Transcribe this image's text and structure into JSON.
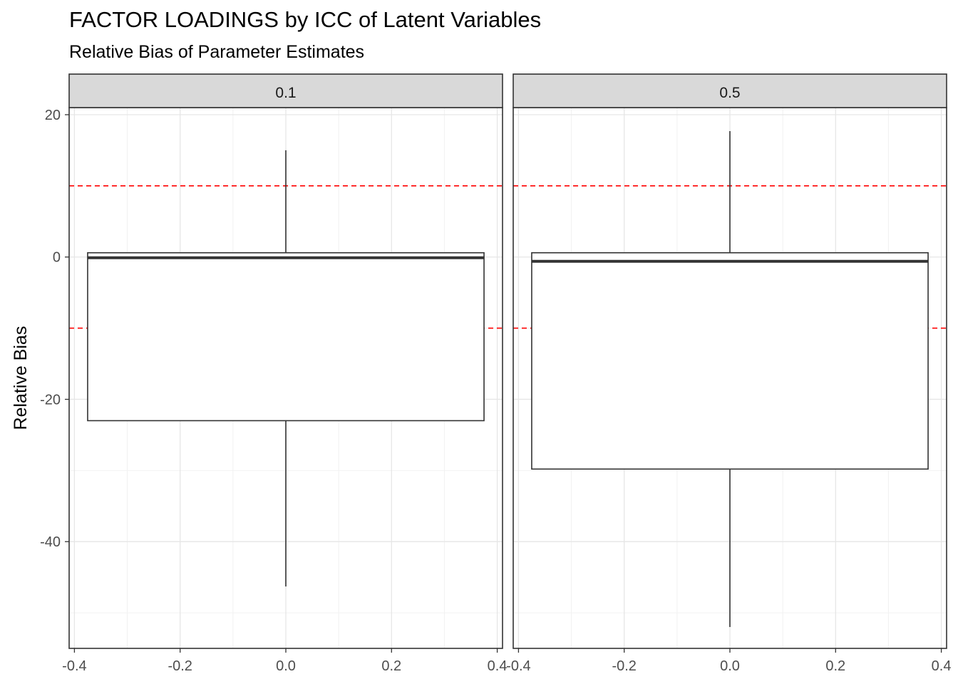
{
  "chart_data": {
    "type": "boxplot",
    "title": "FACTOR LOADINGS by ICC of Latent Variables",
    "subtitle": "Relative Bias of Parameter Estimates",
    "xlabel": "",
    "ylabel": "Relative Bias",
    "xlim": [
      -0.41,
      0.41
    ],
    "ylim": [
      -55,
      21
    ],
    "x_ticks": [
      -0.4,
      -0.2,
      0.0,
      0.2,
      0.4
    ],
    "x_tick_labels": [
      "-0.4",
      "-0.2",
      "0.0",
      "0.2",
      "0.4"
    ],
    "y_ticks": [
      -40,
      -20,
      0,
      20
    ],
    "y_tick_labels": [
      "-40",
      "-20",
      "0",
      "20"
    ],
    "reference_lines": [
      10,
      -10
    ],
    "reference_line_color": "#ff0000",
    "grid": true,
    "box_x_range": [
      -0.375,
      0.375
    ],
    "facets": [
      {
        "label": "0.1",
        "min": -46.3,
        "q1": -23.0,
        "median": -0.1,
        "q3": 0.6,
        "max": 15.0
      },
      {
        "label": "0.5",
        "min": -52.0,
        "q1": -29.8,
        "median": -0.6,
        "q3": 0.6,
        "max": 17.7
      }
    ]
  }
}
